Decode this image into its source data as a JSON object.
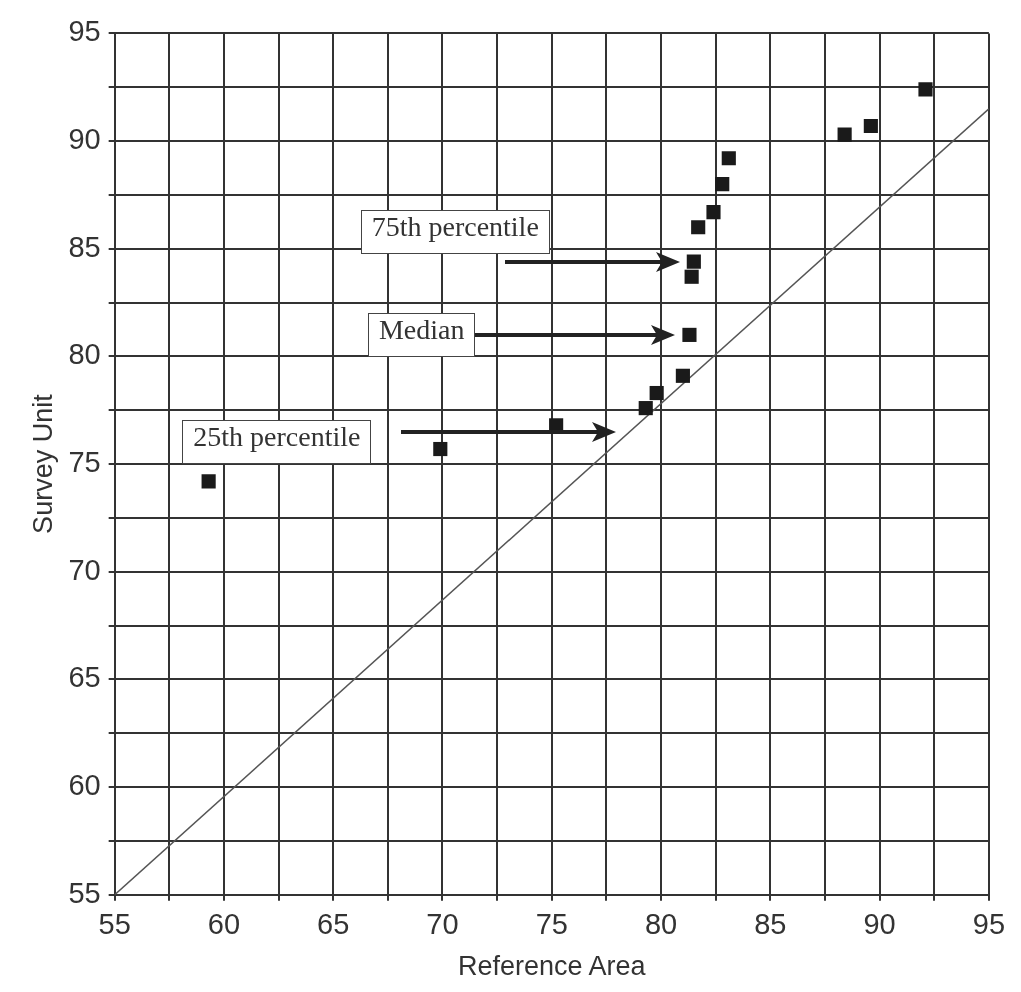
{
  "chart_data": {
    "type": "scatter",
    "xlabel": "Reference Area",
    "ylabel": "Survey Unit",
    "xlim": [
      55,
      95
    ],
    "ylim": [
      55,
      95
    ],
    "xticks": [
      55,
      {
        "value": 57.5,
        "label": null
      },
      60,
      {
        "value": 62.5,
        "label": null
      },
      65,
      {
        "value": 67.5,
        "label": null
      },
      70,
      {
        "value": 72.5,
        "label": null
      },
      75,
      {
        "value": 77.5,
        "label": null
      },
      80,
      {
        "value": 82.5,
        "label": null
      },
      85,
      {
        "value": 87.5,
        "label": null
      },
      90,
      {
        "value": 92.5,
        "label": null
      },
      95
    ],
    "yticks": [
      55,
      {
        "value": 57.5,
        "label": null
      },
      60,
      {
        "value": 62.5,
        "label": null
      },
      65,
      {
        "value": 67.5,
        "label": null
      },
      70,
      {
        "value": 72.5,
        "label": null
      },
      75,
      {
        "value": 77.5,
        "label": null
      },
      80,
      {
        "value": 82.5,
        "label": null
      },
      85,
      {
        "value": 87.5,
        "label": null
      },
      90,
      {
        "value": 92.5,
        "label": null
      },
      95
    ],
    "grid": true,
    "legend": false,
    "series": [
      {
        "type": "line",
        "color": "#555555",
        "marker": "none",
        "x": [
          55,
          95
        ],
        "values": [
          55,
          91.5
        ]
      },
      {
        "color": "#1a1a1a",
        "marker": "square",
        "x": [
          59.3,
          69.9,
          75.2,
          79.3,
          79.8,
          81.0,
          81.3,
          81.4,
          81.5,
          81.7,
          82.4,
          82.8,
          83.1,
          88.4,
          89.6,
          92.1
        ],
        "values": [
          74.2,
          75.7,
          76.8,
          77.6,
          78.3,
          79.1,
          81.0,
          83.7,
          84.4,
          86.0,
          86.7,
          88.0,
          89.2,
          90.3,
          90.7,
          92.4
        ]
      }
    ],
    "annotations": [
      "75th percentile",
      "Median",
      "25th percentile"
    ]
  }
}
